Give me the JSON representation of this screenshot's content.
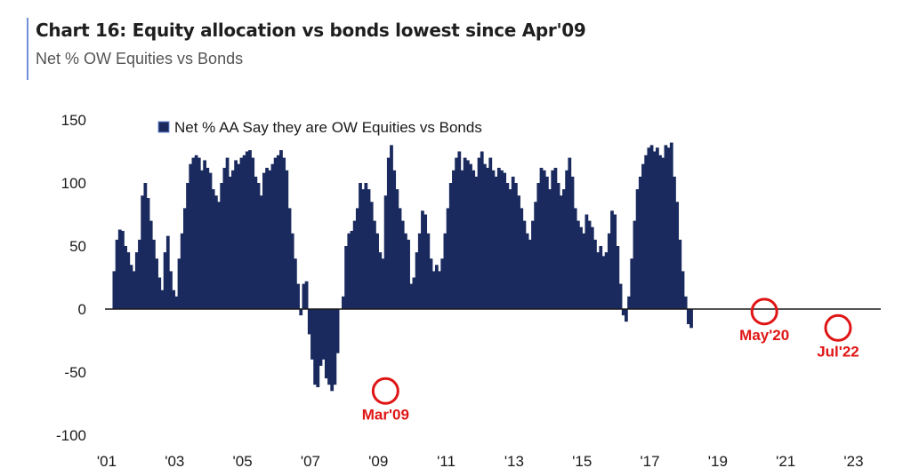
{
  "header": {
    "title": "Chart 16: Equity allocation vs bonds lowest since Apr'09",
    "subtitle": "Net % OW Equities vs Bonds"
  },
  "colors": {
    "bar": "#1a2a5e",
    "annotation": "#e01515",
    "accent": "#6f8fd8"
  },
  "chart_data": {
    "type": "bar",
    "title": "Chart 16: Equity allocation vs bonds lowest since Apr'09",
    "subtitle": "Net % OW Equities vs Bonds",
    "legend": "Net % AA Say they are OW Equities vs Bonds",
    "legend_position": "top-left",
    "ylim": [
      -100,
      150
    ],
    "yticks": [
      150,
      100,
      50,
      0,
      -50,
      -100
    ],
    "xlim": [
      2001.0,
      2023.8
    ],
    "xticks": [
      {
        "value": 2001,
        "label": "'01"
      },
      {
        "value": 2003,
        "label": "'03"
      },
      {
        "value": 2005,
        "label": "'05"
      },
      {
        "value": 2007,
        "label": "'07"
      },
      {
        "value": 2009,
        "label": "'09"
      },
      {
        "value": 2011,
        "label": "'11"
      },
      {
        "value": 2013,
        "label": "'13"
      },
      {
        "value": 2015,
        "label": "'15"
      },
      {
        "value": 2017,
        "label": "'17"
      },
      {
        "value": 2019,
        "label": "'19"
      },
      {
        "value": 2021,
        "label": "'21"
      },
      {
        "value": 2023,
        "label": "'23"
      }
    ],
    "start": 2001.17,
    "step": 0.08333,
    "series": [
      {
        "name": "Net % AA Say they are OW Equities vs Bonds",
        "values": [
          30,
          55,
          63,
          62,
          50,
          45,
          35,
          30,
          45,
          55,
          90,
          100,
          88,
          70,
          55,
          40,
          25,
          15,
          45,
          58,
          30,
          15,
          10,
          40,
          60,
          80,
          100,
          115,
          120,
          122,
          120,
          110,
          118,
          112,
          108,
          95,
          90,
          85,
          100,
          112,
          120,
          105,
          110,
          118,
          115,
          120,
          122,
          125,
          126,
          120,
          105,
          100,
          90,
          108,
          112,
          110,
          115,
          120,
          122,
          126,
          120,
          110,
          80,
          60,
          40,
          20,
          -5,
          20,
          22,
          -20,
          -40,
          -60,
          -62,
          -45,
          -40,
          -55,
          -60,
          -65,
          -60,
          -35,
          0,
          10,
          50,
          60,
          62,
          70,
          80,
          100,
          95,
          100,
          95,
          85,
          70,
          60,
          45,
          40,
          90,
          120,
          130,
          110,
          95,
          80,
          70,
          60,
          55,
          20,
          25,
          45,
          60,
          78,
          75,
          60,
          40,
          30,
          35,
          30,
          40,
          60,
          80,
          100,
          110,
          120,
          125,
          110,
          120,
          118,
          115,
          110,
          105,
          120,
          125,
          115,
          112,
          120,
          110,
          105,
          112,
          110,
          108,
          100,
          95,
          105,
          100,
          90,
          80,
          70,
          60,
          55,
          70,
          85,
          100,
          112,
          110,
          105,
          95,
          110,
          112,
          100,
          90,
          95,
          110,
          120,
          105,
          80,
          70,
          65,
          60,
          75,
          70,
          65,
          55,
          45,
          50,
          42,
          45,
          60,
          78,
          75,
          50,
          20,
          -5,
          -10,
          10,
          40,
          70,
          95,
          105,
          115,
          122,
          128,
          130,
          125,
          128,
          122,
          120,
          130,
          128,
          132,
          105,
          85,
          55,
          30,
          10,
          -12,
          -15
        ]
      }
    ],
    "annotations": [
      {
        "label": "Mar'09",
        "x": 2009.17,
        "y": -65
      },
      {
        "label": "May'20",
        "x": 2020.33,
        "y": -2
      },
      {
        "label": "Jul'22",
        "x": 2022.5,
        "y": -15
      }
    ]
  }
}
